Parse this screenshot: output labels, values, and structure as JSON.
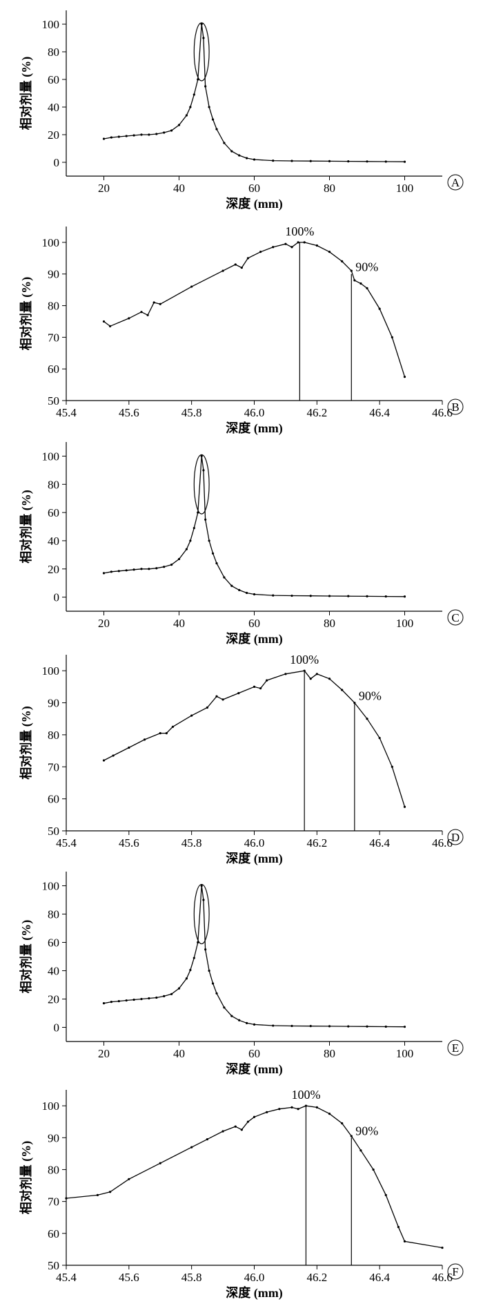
{
  "figure": {
    "xlabel": "深度 (mm)",
    "ylabel": "相对剂量 (%)"
  },
  "chart_data": [
    {
      "panel": "A",
      "type": "line",
      "zoom": false,
      "xlabel": "深度 (mm)",
      "ylabel": "相对剂量 (%)",
      "xlim": [
        10,
        110
      ],
      "ylim": [
        -10,
        110
      ],
      "xticks": [
        "20",
        "40",
        "60",
        "80",
        "100"
      ],
      "yticks": [
        "0",
        "20",
        "40",
        "60",
        "80",
        "100"
      ],
      "peak_ellipse": {
        "x": 46,
        "y": 80,
        "rx": 2,
        "ry": 21
      },
      "x": [
        20,
        22,
        24,
        26,
        28,
        30,
        32,
        34,
        36,
        38,
        40,
        42,
        43,
        44,
        45,
        46,
        46.5,
        47,
        48,
        49,
        50,
        52,
        54,
        56,
        58,
        60,
        65,
        70,
        75,
        80,
        85,
        90,
        95,
        100
      ],
      "y": [
        17,
        18,
        18.5,
        19,
        19.5,
        20,
        20,
        20.5,
        21.5,
        23,
        27,
        34,
        40,
        49,
        60,
        100,
        90,
        55,
        40,
        31,
        24,
        14,
        8,
        5,
        3,
        2,
        1.2,
        1,
        0.9,
        0.8,
        0.7,
        0.6,
        0.5,
        0.4
      ]
    },
    {
      "panel": "B",
      "type": "line",
      "zoom": true,
      "xlabel": "深度 (mm)",
      "ylabel": "相对剂量 (%)",
      "xlim": [
        45.4,
        46.6
      ],
      "ylim": [
        50,
        105
      ],
      "xticks": [
        "45.4",
        "45.6",
        "45.8",
        "46.0",
        "46.2",
        "46.4",
        "46.6"
      ],
      "yticks": [
        "50",
        "60",
        "70",
        "80",
        "90",
        "100"
      ],
      "markers": [
        {
          "label": "100%",
          "x": 46.145,
          "y": 100
        },
        {
          "label": "90%",
          "x": 46.31,
          "y": 90
        }
      ],
      "x": [
        45.52,
        45.54,
        45.6,
        45.64,
        45.66,
        45.68,
        45.7,
        45.8,
        45.9,
        45.94,
        45.96,
        45.98,
        46.02,
        46.06,
        46.1,
        46.12,
        46.14,
        46.16,
        46.2,
        46.24,
        46.28,
        46.31,
        46.32,
        46.34,
        46.36,
        46.4,
        46.44,
        46.48
      ],
      "y": [
        75,
        73.5,
        76,
        78,
        77,
        81,
        80.5,
        86,
        91,
        93,
        92,
        95,
        97,
        98.5,
        99.5,
        98.5,
        100,
        100,
        99,
        97,
        94,
        91,
        88,
        87,
        85.5,
        79,
        70,
        57.5
      ]
    },
    {
      "panel": "C",
      "type": "line",
      "zoom": false,
      "xlabel": "深度 (mm)",
      "ylabel": "相对剂量 (%)",
      "xlim": [
        10,
        110
      ],
      "ylim": [
        -10,
        110
      ],
      "xticks": [
        "20",
        "40",
        "60",
        "80",
        "100"
      ],
      "yticks": [
        "0",
        "20",
        "40",
        "60",
        "80",
        "100"
      ],
      "peak_ellipse": {
        "x": 46,
        "y": 80,
        "rx": 2,
        "ry": 21
      },
      "x": [
        20,
        22,
        24,
        26,
        28,
        30,
        32,
        34,
        36,
        38,
        40,
        42,
        43,
        44,
        45,
        46,
        46.5,
        47,
        48,
        49,
        50,
        52,
        54,
        56,
        58,
        60,
        65,
        70,
        75,
        80,
        85,
        90,
        95,
        100
      ],
      "y": [
        17,
        18,
        18.5,
        19,
        19.5,
        20,
        20,
        20.5,
        21.5,
        23,
        27,
        34,
        40,
        49,
        60,
        100,
        90,
        55,
        40,
        31,
        24,
        14,
        8,
        5,
        3,
        2,
        1.2,
        1,
        0.9,
        0.8,
        0.7,
        0.6,
        0.5,
        0.4
      ]
    },
    {
      "panel": "D",
      "type": "line",
      "zoom": true,
      "xlabel": "深度 (mm)",
      "ylabel": "相对剂量 (%)",
      "xlim": [
        45.4,
        46.6
      ],
      "ylim": [
        50,
        105
      ],
      "xticks": [
        "45.4",
        "45.6",
        "45.8",
        "46.0",
        "46.2",
        "46.4",
        "46.6"
      ],
      "yticks": [
        "50",
        "60",
        "70",
        "80",
        "90",
        "100"
      ],
      "markers": [
        {
          "label": "100%",
          "x": 46.16,
          "y": 100
        },
        {
          "label": "90%",
          "x": 46.32,
          "y": 90
        }
      ],
      "x": [
        45.52,
        45.55,
        45.6,
        45.65,
        45.7,
        45.72,
        45.74,
        45.8,
        45.85,
        45.88,
        45.9,
        45.95,
        46.0,
        46.02,
        46.04,
        46.1,
        46.16,
        46.18,
        46.2,
        46.24,
        46.28,
        46.32,
        46.36,
        46.4,
        46.44,
        46.48
      ],
      "y": [
        72,
        73.5,
        76,
        78.5,
        80.5,
        80.5,
        82.5,
        86,
        88.5,
        92,
        91,
        93,
        95,
        94.5,
        97,
        99,
        100,
        97.5,
        99,
        97.5,
        94,
        90,
        85,
        79,
        70,
        57.5
      ]
    },
    {
      "panel": "E",
      "type": "line",
      "zoom": false,
      "xlabel": "深度 (mm)",
      "ylabel": "相对剂量 (%)",
      "xlim": [
        10,
        110
      ],
      "ylim": [
        -10,
        110
      ],
      "xticks": [
        "20",
        "40",
        "60",
        "80",
        "100"
      ],
      "yticks": [
        "0",
        "20",
        "40",
        "60",
        "80",
        "100"
      ],
      "peak_ellipse": {
        "x": 46,
        "y": 80,
        "rx": 2,
        "ry": 21
      },
      "x": [
        20,
        22,
        24,
        26,
        28,
        30,
        32,
        34,
        36,
        38,
        40,
        42,
        43,
        44,
        45,
        46,
        46.5,
        47,
        48,
        49,
        50,
        52,
        54,
        56,
        58,
        60,
        65,
        70,
        75,
        80,
        85,
        90,
        95,
        100
      ],
      "y": [
        17,
        18,
        18.5,
        19,
        19.5,
        20,
        20.5,
        21,
        22,
        23.5,
        27.5,
        34.5,
        40.5,
        49,
        60,
        100,
        90,
        55,
        40,
        31,
        24,
        14,
        8,
        5,
        3,
        2,
        1.2,
        1,
        0.9,
        0.8,
        0.7,
        0.6,
        0.5,
        0.4
      ]
    },
    {
      "panel": "F",
      "type": "line",
      "zoom": true,
      "xlabel": "深度 (mm)",
      "ylabel": "相对剂量 (%)",
      "xlim": [
        45.4,
        46.6
      ],
      "ylim": [
        50,
        105
      ],
      "xticks": [
        "45.4",
        "45.6",
        "45.8",
        "46.0",
        "46.2",
        "46.4",
        "46.6"
      ],
      "yticks": [
        "50",
        "60",
        "70",
        "80",
        "90",
        "100"
      ],
      "markers": [
        {
          "label": "100%",
          "x": 46.165,
          "y": 100
        },
        {
          "label": "90%",
          "x": 46.31,
          "y": 90
        }
      ],
      "x": [
        45.4,
        45.5,
        45.54,
        45.6,
        45.7,
        45.8,
        45.85,
        45.9,
        45.94,
        45.96,
        45.98,
        46.0,
        46.04,
        46.08,
        46.12,
        46.14,
        46.165,
        46.2,
        46.24,
        46.28,
        46.31,
        46.34,
        46.38,
        46.42,
        46.46,
        46.48,
        46.6
      ],
      "y": [
        71,
        72,
        73,
        77,
        82,
        87,
        89.5,
        92,
        93.5,
        92.5,
        95,
        96.5,
        98,
        99,
        99.5,
        99,
        100,
        99.5,
        97.5,
        94.5,
        90.5,
        86,
        80,
        72,
        62,
        57.5,
        55.5
      ]
    }
  ]
}
